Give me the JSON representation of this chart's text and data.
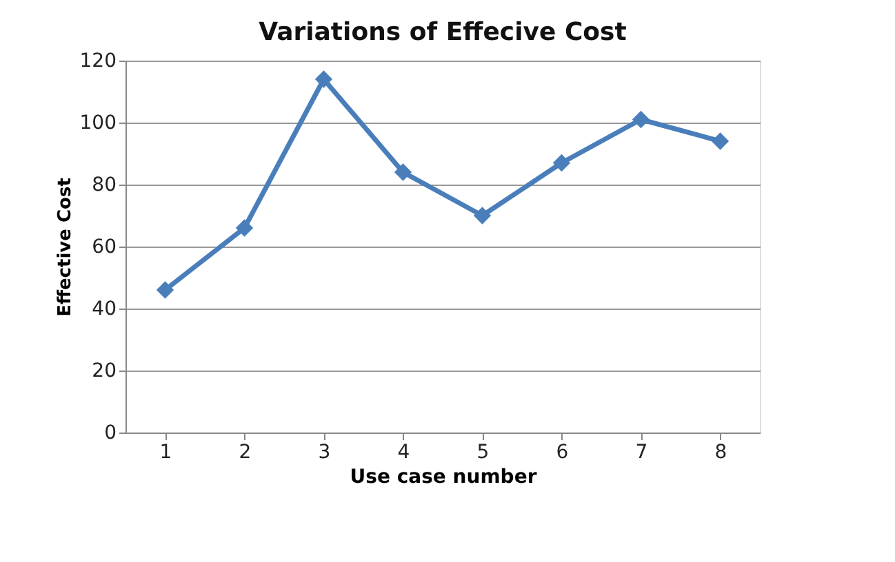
{
  "chart_data": {
    "type": "line",
    "title": "Variations of Effecive Cost",
    "xlabel": "Use case number",
    "ylabel": "Effective Cost",
    "categories": [
      "1",
      "2",
      "3",
      "4",
      "5",
      "6",
      "7",
      "8"
    ],
    "series": [
      {
        "color": "#4a7ebb",
        "values": [
          46,
          66,
          114,
          84,
          70,
          87,
          101,
          94
        ]
      }
    ],
    "ylim": [
      0,
      120
    ],
    "yticks": [
      0,
      20,
      40,
      60,
      80,
      100,
      120
    ],
    "grid": "y",
    "legend": false,
    "marker": "diamond",
    "line_style": "solid"
  }
}
